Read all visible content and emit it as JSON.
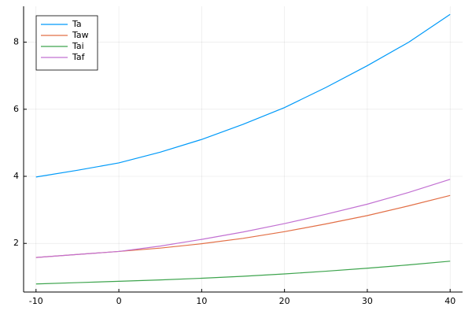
{
  "chart_data": {
    "type": "line",
    "x": [
      -10,
      -5,
      0,
      5,
      10,
      15,
      20,
      25,
      30,
      35,
      40
    ],
    "series": [
      {
        "name": "Ta",
        "color": "#009af9",
        "values": [
          3.98,
          4.18,
          4.4,
          4.72,
          5.1,
          5.55,
          6.05,
          6.65,
          7.3,
          8.0,
          8.83
        ]
      },
      {
        "name": "Taw",
        "color": "#e26f46",
        "values": [
          1.58,
          1.67,
          1.76,
          1.86,
          1.99,
          2.15,
          2.35,
          2.58,
          2.83,
          3.12,
          3.43
        ]
      },
      {
        "name": "Tai",
        "color": "#3da44d",
        "values": [
          0.79,
          0.83,
          0.87,
          0.91,
          0.96,
          1.02,
          1.09,
          1.17,
          1.26,
          1.36,
          1.47
        ]
      },
      {
        "name": "Taf",
        "color": "#c271d2",
        "values": [
          1.58,
          1.67,
          1.76,
          1.92,
          2.12,
          2.34,
          2.59,
          2.87,
          3.17,
          3.52,
          3.91
        ]
      }
    ],
    "xlim": [
      -11.5,
      41.5
    ],
    "xticks": [
      -10,
      0,
      10,
      20,
      30,
      40
    ],
    "ylim": [
      0.55,
      9.07
    ],
    "yticks": [
      2,
      4,
      6,
      8
    ],
    "grid": true,
    "legend": "top-left"
  }
}
